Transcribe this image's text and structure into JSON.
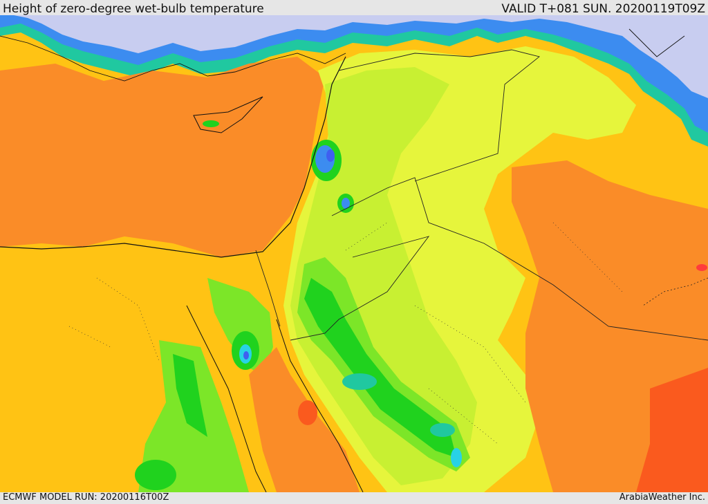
{
  "header": {
    "title": "Height of zero-degree wet-bulb temperature",
    "valid": "VALID T+081 SUN. 20200119T09Z"
  },
  "footer": {
    "model_run": "ECMWF MODEL RUN: 20200116T00Z",
    "credit": "ArabiaWeather Inc."
  },
  "map": {
    "palette": {
      "north_sea": "#c8cdf0",
      "deep_blue": "#3f5ff0",
      "blue": "#3c8cf0",
      "cyan": "#28d2e6",
      "teal": "#20c8a0",
      "green": "#20d21e",
      "light_green": "#7ce628",
      "yellow_green": "#c8f032",
      "yellow": "#e6f53c",
      "gold": "#ffc314",
      "orange": "#ffaa00",
      "dark_orange": "#fa8c28",
      "red_orange": "#fa5a1e",
      "red": "#ff3c3c"
    }
  }
}
